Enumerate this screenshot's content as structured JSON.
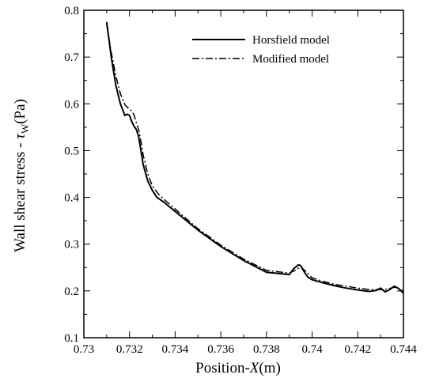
{
  "chart_data": {
    "type": "line",
    "xlabel_prefix": "Position-",
    "xlabel_var": "X",
    "xlabel_suffix": "(m)",
    "ylabel_prefix": "Wall shear stress - ",
    "ylabel_var": "τ",
    "ylabel_sub": "W",
    "ylabel_suffix": "(Pa)",
    "xlim": [
      0.73,
      0.744
    ],
    "ylim": [
      0.1,
      0.8
    ],
    "xticks": [
      "0.73",
      "0.732",
      "0.734",
      "0.736",
      "0.738",
      "0.74",
      "0.742",
      "0.744"
    ],
    "yticks": [
      "0.1",
      "0.2",
      "0.3",
      "0.4",
      "0.5",
      "0.6",
      "0.7",
      "0.8"
    ],
    "xtick_values": [
      0.73,
      0.732,
      0.734,
      0.736,
      0.738,
      0.74,
      0.742,
      0.744
    ],
    "ytick_values": [
      0.1,
      0.2,
      0.3,
      0.4,
      0.5,
      0.6,
      0.7,
      0.8
    ],
    "legend_position": "top-right",
    "grid": false,
    "series": [
      {
        "name": "Horsfield model",
        "style": "solid",
        "x": [
          0.731,
          0.7312,
          0.7314,
          0.7316,
          0.7318,
          0.7319,
          0.732,
          0.7321,
          0.7322,
          0.7323,
          0.7324,
          0.7325,
          0.7326,
          0.7328,
          0.733,
          0.7332,
          0.7335,
          0.734,
          0.735,
          0.736,
          0.737,
          0.738,
          0.739,
          0.7392,
          0.7394,
          0.7395,
          0.7396,
          0.7398,
          0.74,
          0.7405,
          0.741,
          0.7415,
          0.742,
          0.7425,
          0.7428,
          0.743,
          0.7432,
          0.7434,
          0.7436,
          0.7438,
          0.744
        ],
        "y": [
          0.775,
          0.7,
          0.64,
          0.6,
          0.575,
          0.578,
          0.575,
          0.562,
          0.552,
          0.545,
          0.53,
          0.5,
          0.47,
          0.435,
          0.415,
          0.4,
          0.39,
          0.37,
          0.33,
          0.295,
          0.265,
          0.24,
          0.235,
          0.248,
          0.256,
          0.254,
          0.245,
          0.23,
          0.224,
          0.217,
          0.211,
          0.206,
          0.202,
          0.199,
          0.201,
          0.206,
          0.198,
          0.203,
          0.21,
          0.205,
          0.195
        ]
      },
      {
        "name": "Modified model",
        "style": "dashdot",
        "x": [
          0.731,
          0.7312,
          0.7314,
          0.7316,
          0.7318,
          0.732,
          0.7321,
          0.7322,
          0.7323,
          0.7324,
          0.7325,
          0.7326,
          0.7328,
          0.733,
          0.7333,
          0.7336,
          0.734,
          0.735,
          0.736,
          0.737,
          0.738,
          0.739,
          0.7393,
          0.7395,
          0.7398,
          0.74,
          0.7405,
          0.741,
          0.7415,
          0.742,
          0.7425,
          0.743,
          0.7433,
          0.7436,
          0.7438,
          0.744
        ],
        "y": [
          0.77,
          0.71,
          0.66,
          0.622,
          0.598,
          0.588,
          0.585,
          0.576,
          0.56,
          0.545,
          0.52,
          0.49,
          0.45,
          0.425,
          0.405,
          0.392,
          0.375,
          0.333,
          0.298,
          0.268,
          0.244,
          0.238,
          0.245,
          0.252,
          0.238,
          0.228,
          0.22,
          0.214,
          0.21,
          0.206,
          0.203,
          0.203,
          0.204,
          0.208,
          0.205,
          0.2
        ]
      }
    ]
  }
}
